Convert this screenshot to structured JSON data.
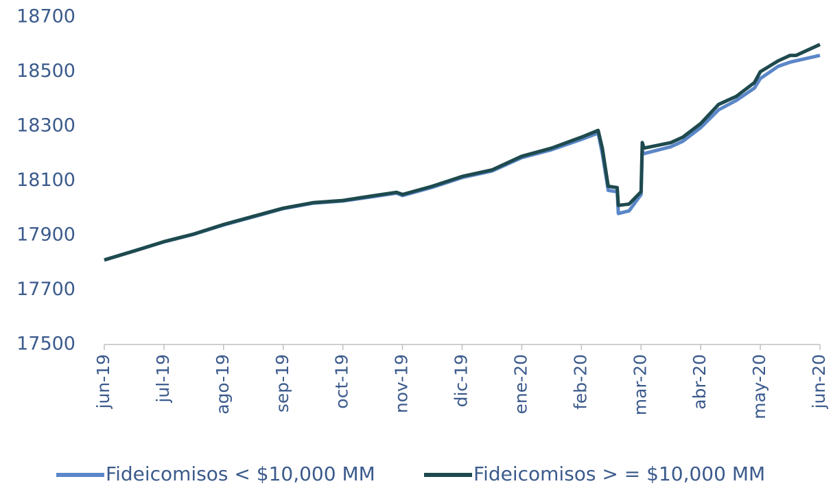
{
  "chart_data": {
    "type": "line",
    "x": [
      0,
      0.5,
      1,
      1.5,
      2,
      2.5,
      3,
      3.5,
      4,
      4.5,
      4.9,
      5,
      5.5,
      6,
      6.5,
      7,
      7.5,
      8,
      8.28,
      8.35,
      8.45,
      8.6,
      8.62,
      8.8,
      9,
      9.02,
      9.05,
      9.5,
      9.7,
      10,
      10.3,
      10.6,
      10.9,
      11,
      11.3,
      11.5,
      11.6,
      12
    ],
    "series": [
      {
        "name": "Fideicomisos < $10,000 MM",
        "color": "#5b87c8",
        "values": [
          17810,
          17843,
          17876,
          17904,
          17938,
          17968,
          17998,
          18018,
          18026,
          18042,
          18055,
          18046,
          18076,
          18112,
          18136,
          18185,
          18214,
          18252,
          18275,
          18200,
          18065,
          18060,
          17980,
          17990,
          18050,
          18210,
          18200,
          18225,
          18245,
          18295,
          18360,
          18395,
          18440,
          18475,
          18520,
          18535,
          18540,
          18560
        ]
      },
      {
        "name": "Fideicomisos > = $10,000 MM",
        "color": "#1e4a4e",
        "values": [
          17810,
          17843,
          17877,
          17905,
          17940,
          17970,
          18000,
          18020,
          18028,
          18045,
          18058,
          18050,
          18080,
          18116,
          18140,
          18190,
          18220,
          18260,
          18285,
          18220,
          18080,
          18075,
          18010,
          18015,
          18060,
          18240,
          18220,
          18240,
          18260,
          18310,
          18380,
          18410,
          18460,
          18500,
          18540,
          18560,
          18560,
          18600
        ]
      }
    ],
    "xlim": [
      0,
      12
    ],
    "xticks": [
      {
        "value": 0,
        "label": "jun-19"
      },
      {
        "value": 1,
        "label": "jul-19"
      },
      {
        "value": 2,
        "label": "ago-19"
      },
      {
        "value": 3,
        "label": "sep-19"
      },
      {
        "value": 4,
        "label": "oct-19"
      },
      {
        "value": 5,
        "label": "nov-19"
      },
      {
        "value": 6,
        "label": "dic-19"
      },
      {
        "value": 7,
        "label": "ene-20"
      },
      {
        "value": 8,
        "label": "feb-20"
      },
      {
        "value": 9,
        "label": "mar-20"
      },
      {
        "value": 10,
        "label": "abr-20"
      },
      {
        "value": 11,
        "label": "may-20"
      },
      {
        "value": 12,
        "label": "jun-20"
      }
    ],
    "ylim": [
      17500,
      18700
    ],
    "yticks": [
      17500,
      17700,
      17900,
      18100,
      18300,
      18500,
      18700
    ],
    "grid": false,
    "legend": "bottom"
  }
}
